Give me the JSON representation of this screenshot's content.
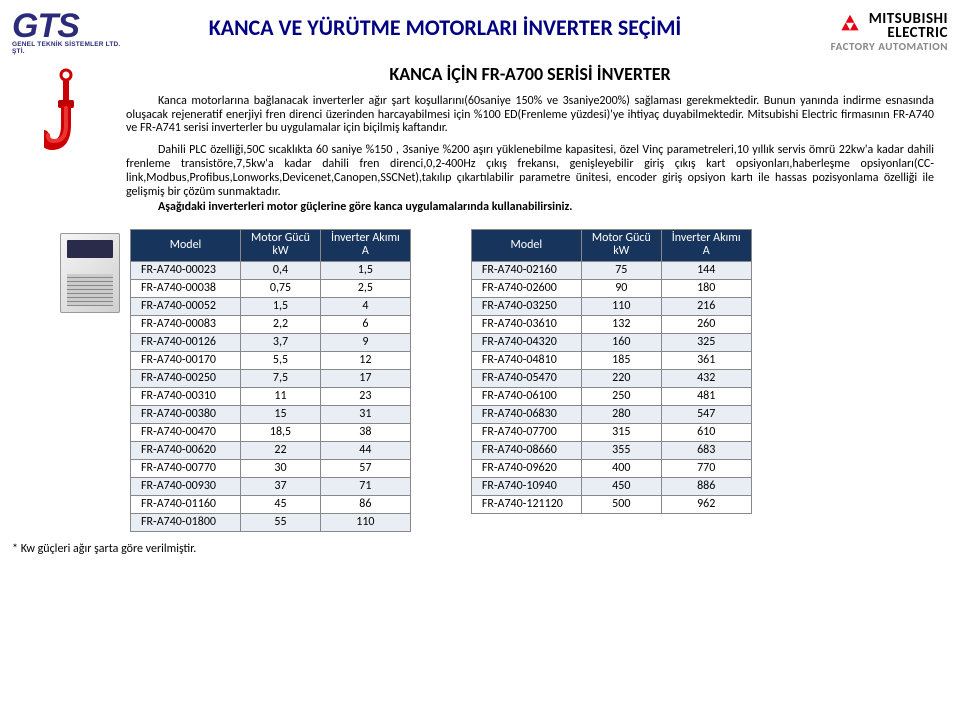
{
  "header": {
    "gts_big": "GTS",
    "gts_small": "GENEL TEKNİK SİSTEMLER LTD. ŞTİ.",
    "main_title": "KANCA VE YÜRÜTME MOTORLARI İNVERTER SEÇİMİ",
    "mits_name": "MITSUBISHI",
    "mits_electric": "ELECTRIC",
    "mits_sub": "FACTORY AUTOMATION"
  },
  "sub_title": "KANCA İÇİN  FR-A700 SERİSİ İNVERTER",
  "body": {
    "p1": "Kanca motorlarına bağlanacak inverterler ağır şart koşullarını(60saniye 150% ve 3saniye200%) sağlaması gerekmektedir. Bunun yanında indirme esnasında oluşacak rejeneratif enerjiyi fren direnci üzerinden harcayabilmesi için %100 ED(Frenleme yüzdesi)'ye ihtiyaç duyabilmektedir. Mitsubishi Electric firmasının FR-A740 ve FR-A741 serisi inverterler bu uygulamalar için biçilmiş kaftandır.",
    "p2": "Dahili PLC özelliği,50C sıcaklıkta 60 saniye %150 , 3saniye %200 aşırı yüklenebilme kapasitesi, özel Vinç parametreleri,10 yıllık servis ömrü 22kw'a kadar dahili frenleme transistöre,7,5kw'a kadar dahili fren direnci,0,2-400Hz çıkış frekansı, genişleyebilir giriş çıkış kart opsiyonları,haberleşme opsiyonları(CC-link,Modbus,Profibus,Lonworks,Devicenet,Canopen,SSCNet),takılıp çıkartılabilir parametre ünitesi, encoder giriş opsiyon kartı ile hassas pozisyonlama özelliği ile gelişmiş bir çözüm sunmaktadır.",
    "p3": "Aşağıdaki inverterleri motor güçlerine göre kanca uygulamalarında kullanabilirsiniz."
  },
  "table_headers": {
    "model": "Model",
    "power_l1": "Motor Gücü",
    "power_l2": "kW",
    "current_l1": "İnverter Akımı",
    "current_l2": "A"
  },
  "table1": [
    {
      "model": "FR-A740-00023",
      "kw": "0,4",
      "a": "1,5"
    },
    {
      "model": "FR-A740-00038",
      "kw": "0,75",
      "a": "2,5"
    },
    {
      "model": "FR-A740-00052",
      "kw": "1,5",
      "a": "4"
    },
    {
      "model": "FR-A740-00083",
      "kw": "2,2",
      "a": "6"
    },
    {
      "model": "FR-A740-00126",
      "kw": "3,7",
      "a": "9"
    },
    {
      "model": "FR-A740-00170",
      "kw": "5,5",
      "a": "12"
    },
    {
      "model": "FR-A740-00250",
      "kw": "7,5",
      "a": "17"
    },
    {
      "model": "FR-A740-00310",
      "kw": "11",
      "a": "23"
    },
    {
      "model": "FR-A740-00380",
      "kw": "15",
      "a": "31"
    },
    {
      "model": "FR-A740-00470",
      "kw": "18,5",
      "a": "38"
    },
    {
      "model": "FR-A740-00620",
      "kw": "22",
      "a": "44"
    },
    {
      "model": "FR-A740-00770",
      "kw": "30",
      "a": "57"
    },
    {
      "model": "FR-A740-00930",
      "kw": "37",
      "a": "71"
    },
    {
      "model": "FR-A740-01160",
      "kw": "45",
      "a": "86"
    },
    {
      "model": "FR-A740-01800",
      "kw": "55",
      "a": "110"
    }
  ],
  "table2": [
    {
      "model": "FR-A740-02160",
      "kw": "75",
      "a": "144"
    },
    {
      "model": "FR-A740-02600",
      "kw": "90",
      "a": "180"
    },
    {
      "model": "FR-A740-03250",
      "kw": "110",
      "a": "216"
    },
    {
      "model": "FR-A740-03610",
      "kw": "132",
      "a": "260"
    },
    {
      "model": "FR-A740-04320",
      "kw": "160",
      "a": "325"
    },
    {
      "model": "FR-A740-04810",
      "kw": "185",
      "a": "361"
    },
    {
      "model": "FR-A740-05470",
      "kw": "220",
      "a": "432"
    },
    {
      "model": "FR-A740-06100",
      "kw": "250",
      "a": "481"
    },
    {
      "model": "FR-A740-06830",
      "kw": "280",
      "a": "547"
    },
    {
      "model": "FR-A740-07700",
      "kw": "315",
      "a": "610"
    },
    {
      "model": "FR-A740-08660",
      "kw": "355",
      "a": "683"
    },
    {
      "model": "FR-A740-09620",
      "kw": "400",
      "a": "770"
    },
    {
      "model": "FR-A740-10940",
      "kw": "450",
      "a": "886"
    },
    {
      "model": "FR-A740-121120",
      "kw": "500",
      "a": "962"
    }
  ],
  "footnote": "* Kw güçleri ağır şarta göre verilmiştir.",
  "colors": {
    "title": "#000080",
    "table_header_bg": "#16345c",
    "row_odd": "#e9eef5",
    "mits_red": "#e60012"
  }
}
